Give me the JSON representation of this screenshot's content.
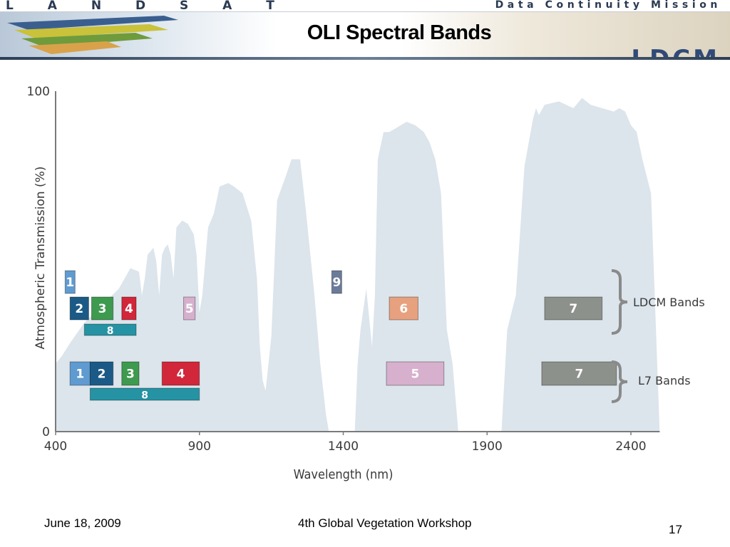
{
  "header": {
    "brand_left": "L A N D S A T",
    "brand_right": "Data Continuity Mission",
    "logo_text": "LDCM",
    "title": "OLI Spectral Bands"
  },
  "footer": {
    "date": "June 18, 2009",
    "event": "4th Global Vegetation Workshop",
    "page_number": "17"
  },
  "colors": {
    "transmission_fill": "#dce5ec",
    "band_1": "#5f9bd0",
    "band_2": "#1b5a86",
    "band_3": "#3e9a4e",
    "band_4": "#d2263a",
    "band_5": "#d7b0ce",
    "band_6": "#e7a17f",
    "band_7": "#8d918b",
    "band_8": "#2593a4",
    "band_9": "#6b7b9a"
  },
  "chart_data": {
    "type": "area",
    "xlabel": "Wavelength (nm)",
    "ylabel": "Atmospheric Transmission (%)",
    "xlim": [
      400,
      2500
    ],
    "ylim": [
      0,
      100
    ],
    "x_ticks": [
      "400",
      "900",
      "1400",
      "1900",
      "2400"
    ],
    "y_ticks": [
      "0",
      "100"
    ],
    "grid": false,
    "transmission_curve": {
      "x": [
        400,
        420,
        450,
        500,
        560,
        620,
        660,
        690,
        700,
        710,
        720,
        740,
        750,
        760,
        770,
        780,
        790,
        800,
        810,
        820,
        840,
        860,
        880,
        890,
        900,
        910,
        930,
        940,
        950,
        970,
        1000,
        1020,
        1050,
        1080,
        1100,
        1110,
        1120,
        1130,
        1150,
        1170,
        1200,
        1220,
        1250,
        1270,
        1300,
        1320,
        1340,
        1350,
        1370,
        1380,
        1400,
        1420,
        1440,
        1450,
        1460,
        1480,
        1500,
        1510,
        1520,
        1540,
        1560,
        1580,
        1600,
        1620,
        1650,
        1680,
        1700,
        1720,
        1740,
        1760,
        1780,
        1800,
        1820,
        1840,
        1870,
        1900,
        1930,
        1950,
        1970,
        2000,
        2030,
        2060,
        2070,
        2080,
        2100,
        2150,
        2200,
        2230,
        2260,
        2300,
        2340,
        2360,
        2380,
        2400,
        2420,
        2440,
        2470,
        2500
      ],
      "y": [
        20,
        22,
        26,
        32,
        37,
        42,
        48,
        47,
        40,
        45,
        52,
        54,
        50,
        40,
        52,
        54,
        55,
        52,
        45,
        60,
        62,
        61,
        58,
        52,
        35,
        40,
        60,
        62,
        64,
        72,
        73,
        72,
        70,
        62,
        45,
        25,
        15,
        12,
        28,
        68,
        75,
        80,
        80,
        65,
        40,
        20,
        5,
        0,
        0,
        0,
        0,
        0,
        0,
        20,
        30,
        42,
        25,
        40,
        80,
        88,
        88,
        89,
        90,
        91,
        90,
        88,
        85,
        80,
        70,
        30,
        20,
        0,
        0,
        0,
        0,
        0,
        0,
        0,
        30,
        40,
        78,
        92,
        95,
        93,
        96,
        97,
        95,
        98,
        96,
        95,
        94,
        95,
        94,
        90,
        88,
        80,
        70,
        0
      ]
    },
    "band_groups": [
      {
        "name": "LDCM Bands",
        "bands": [
          {
            "label": "1",
            "x_start": 433,
            "x_end": 453,
            "row": 1
          },
          {
            "label": "2",
            "x_start": 450,
            "x_end": 515,
            "row": 2
          },
          {
            "label": "3",
            "x_start": 525,
            "x_end": 600,
            "row": 2
          },
          {
            "label": "4",
            "x_start": 630,
            "x_end": 680,
            "row": 2
          },
          {
            "label": "5",
            "x_start": 845,
            "x_end": 885,
            "row": 2
          },
          {
            "label": "6",
            "x_start": 1560,
            "x_end": 1660,
            "row": 2
          },
          {
            "label": "7",
            "x_start": 2100,
            "x_end": 2300,
            "row": 2
          },
          {
            "label": "8",
            "x_start": 500,
            "x_end": 680,
            "row": 3
          },
          {
            "label": "9",
            "x_start": 1360,
            "x_end": 1390,
            "row": 1
          }
        ]
      },
      {
        "name": "L7 Bands",
        "bands": [
          {
            "label": "1",
            "x_start": 450,
            "x_end": 520,
            "row": 1
          },
          {
            "label": "2",
            "x_start": 520,
            "x_end": 600,
            "row": 1
          },
          {
            "label": "3",
            "x_start": 630,
            "x_end": 690,
            "row": 1
          },
          {
            "label": "4",
            "x_start": 770,
            "x_end": 900,
            "row": 1
          },
          {
            "label": "5",
            "x_start": 1550,
            "x_end": 1750,
            "row": 1
          },
          {
            "label": "7",
            "x_start": 2090,
            "x_end": 2350,
            "row": 1
          },
          {
            "label": "8",
            "x_start": 520,
            "x_end": 900,
            "row": 2
          }
        ]
      }
    ]
  }
}
